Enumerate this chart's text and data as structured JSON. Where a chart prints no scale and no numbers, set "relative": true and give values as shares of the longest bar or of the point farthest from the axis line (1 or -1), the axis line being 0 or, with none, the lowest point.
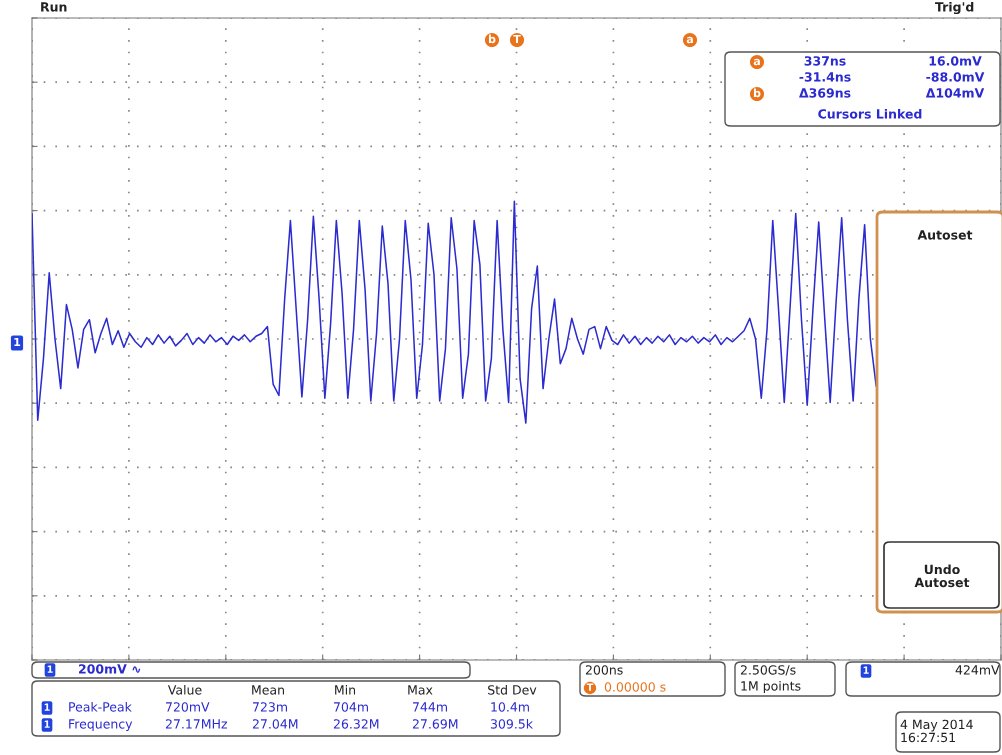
{
  "chart_data": {
    "type": "line",
    "relative": true,
    "grid": true,
    "categories": [
      null,
      null,
      null,
      null,
      null,
      null,
      null,
      null,
      null,
      null,
      null,
      null,
      null,
      null,
      null,
      null,
      null,
      null,
      null,
      null,
      null,
      null,
      null,
      null,
      null,
      null,
      null,
      null,
      null,
      null,
      null,
      null,
      null,
      null,
      null,
      null,
      null,
      null,
      null,
      null,
      null,
      null,
      null,
      null,
      null,
      null,
      null,
      null,
      null,
      null,
      null,
      null,
      null,
      null,
      null,
      null,
      null,
      null,
      null,
      null,
      null,
      null,
      null,
      null,
      null,
      null,
      null,
      null,
      null,
      null,
      null,
      null,
      null,
      null,
      null,
      null,
      null,
      null,
      null,
      null,
      null,
      null,
      null,
      null,
      null,
      null,
      null,
      null,
      null,
      null,
      null,
      null,
      null,
      null,
      null,
      null,
      null,
      null,
      null,
      null,
      null,
      null,
      null,
      null,
      null,
      null,
      null,
      null,
      null,
      null,
      null,
      null,
      null,
      null,
      null,
      null,
      null,
      null,
      null,
      null,
      null,
      null,
      null,
      null,
      null,
      null,
      null,
      null,
      null,
      null,
      null,
      null,
      null,
      null,
      null,
      null,
      null,
      null,
      null,
      null,
      null,
      null,
      null,
      null,
      null,
      null,
      null,
      null
    ],
    "series": [
      {
        "color": "#2b2bd0",
        "values": [
          0.91,
          -0.59,
          -0.14,
          0.48,
          0,
          -0.36,
          0.25,
          0.07,
          -0.21,
          0.07,
          0.14,
          -0.1,
          0.04,
          0.15,
          -0.04,
          0.06,
          -0.06,
          0.04,
          -0.02,
          -0.06,
          0.01,
          -0.04,
          0.03,
          -0.03,
          0.02,
          -0.05,
          -0.01,
          0.04,
          -0.04,
          0.01,
          -0.03,
          0.03,
          -0.02,
          0.01,
          -0.04,
          0.02,
          -0.01,
          0.03,
          -0.02,
          0.02,
          0.04,
          0.09,
          -0.33,
          -0.41,
          0.29,
          0.86,
          0.22,
          -0.42,
          0.14,
          0.89,
          0.29,
          -0.43,
          0.11,
          0.86,
          0.33,
          -0.43,
          0.07,
          0.86,
          0.36,
          -0.45,
          0.04,
          0.82,
          0.4,
          -0.45,
          0,
          0.86,
          0.43,
          -0.43,
          -0.04,
          0.84,
          0.47,
          -0.45,
          -0.07,
          0.88,
          0.51,
          -0.43,
          -0.11,
          0.86,
          0.54,
          -0.45,
          -0.14,
          0.86,
          0.07,
          -0.46,
          1,
          -0.29,
          -0.61,
          0.22,
          0.53,
          -0.36,
          0,
          0.29,
          -0.18,
          -0.07,
          0.15,
          0,
          -0.11,
          0.07,
          0.09,
          -0.07,
          0.09,
          -0.01,
          -0.04,
          0.03,
          -0.03,
          0.02,
          -0.04,
          0.01,
          -0.03,
          0.02,
          -0.02,
          0.03,
          -0.04,
          0.01,
          -0.02,
          0.02,
          -0.03,
          0.01,
          -0.02,
          0.03,
          -0.04,
          0.01,
          -0.02,
          0.02,
          0.06,
          0.15,
          0,
          -0.43,
          0.07,
          0.86,
          0.22,
          -0.46,
          0.22,
          0.91,
          0.14,
          -0.48,
          0.22,
          0.85,
          0.18,
          -0.46,
          0.25,
          0.88,
          0.14,
          -0.45,
          0.29,
          0.83,
          0,
          -0.34
        ]
      }
    ],
    "annotations": [
      "Run",
      "Trig'd",
      "T",
      "1",
      "a",
      "337ns",
      "16.0mV",
      "-31.4ns",
      "-88.0mV",
      "b",
      "Δ369ns",
      "Δ104mV",
      "Cursors Linked",
      "Autoset",
      "Undo\nAutoset",
      "1",
      "200mV ∿",
      "Value",
      "Mean",
      "Min",
      "Max",
      "Std Dev",
      "1",
      "Peak-Peak",
      "720mV",
      "723m",
      "704m",
      "744m",
      "10.4m",
      "1",
      "Frequency",
      "27.17MHz",
      "27.04M",
      "26.32M",
      "27.69M",
      "309.5k",
      "200ns",
      "T",
      "0.00000 s",
      "2.50GS/s",
      "1M points",
      "1",
      "424mV",
      "4 May 2014\n16:27:51",
      "b",
      "a"
    ]
  }
}
